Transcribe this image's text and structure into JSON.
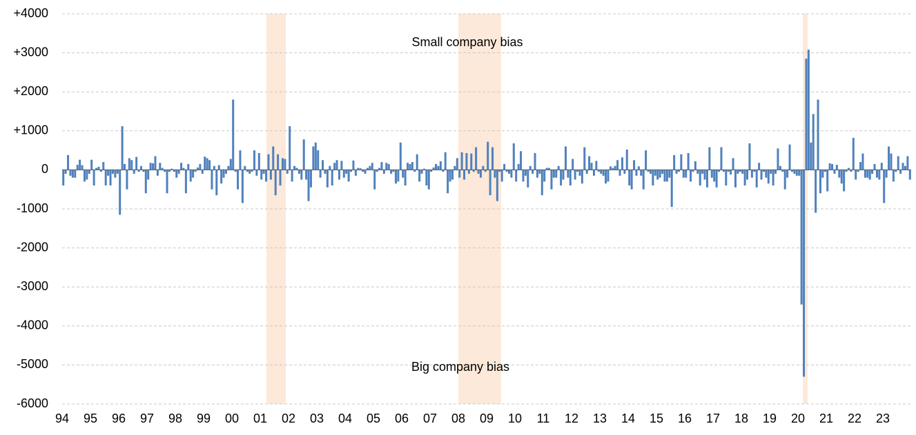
{
  "chart_data": {
    "type": "bar",
    "annotations": [
      "Small company bias",
      "Big company bias"
    ],
    "color": "#4f81bd",
    "grid": true,
    "ylim": [
      -6000,
      4000
    ],
    "yticks": [
      {
        "value": 4000,
        "label": "+4000"
      },
      {
        "value": 3000,
        "label": "+3000"
      },
      {
        "value": 2000,
        "label": "+2000"
      },
      {
        "value": 1000,
        "label": "+1000"
      },
      0,
      -1000,
      -2000,
      -3000,
      -4000,
      -5000,
      -6000
    ],
    "categories": [
      "94",
      null,
      null,
      null,
      null,
      null,
      null,
      null,
      null,
      null,
      null,
      null,
      "95",
      null,
      null,
      null,
      null,
      null,
      null,
      null,
      null,
      null,
      null,
      null,
      "96",
      null,
      null,
      null,
      null,
      null,
      null,
      null,
      null,
      null,
      null,
      null,
      "97",
      null,
      null,
      null,
      null,
      null,
      null,
      null,
      null,
      null,
      null,
      null,
      "98",
      null,
      null,
      null,
      null,
      null,
      null,
      null,
      null,
      null,
      null,
      null,
      "99",
      null,
      null,
      null,
      null,
      null,
      null,
      null,
      null,
      null,
      null,
      null,
      "00",
      null,
      null,
      null,
      null,
      null,
      null,
      null,
      null,
      null,
      null,
      null,
      "01",
      null,
      null,
      null,
      null,
      null,
      null,
      null,
      null,
      null,
      null,
      null,
      "02",
      null,
      null,
      null,
      null,
      null,
      null,
      null,
      null,
      null,
      null,
      null,
      "03",
      null,
      null,
      null,
      null,
      null,
      null,
      null,
      null,
      null,
      null,
      null,
      "04",
      null,
      null,
      null,
      null,
      null,
      null,
      null,
      null,
      null,
      null,
      null,
      "05",
      null,
      null,
      null,
      null,
      null,
      null,
      null,
      null,
      null,
      null,
      null,
      "06",
      null,
      null,
      null,
      null,
      null,
      null,
      null,
      null,
      null,
      null,
      null,
      "07",
      null,
      null,
      null,
      null,
      null,
      null,
      null,
      null,
      null,
      null,
      null,
      "08",
      null,
      null,
      null,
      null,
      null,
      null,
      null,
      null,
      null,
      null,
      null,
      "09",
      null,
      null,
      null,
      null,
      null,
      null,
      null,
      null,
      null,
      null,
      null,
      "10",
      null,
      null,
      null,
      null,
      null,
      null,
      null,
      null,
      null,
      null,
      null,
      "11",
      null,
      null,
      null,
      null,
      null,
      null,
      null,
      null,
      null,
      null,
      null,
      "12",
      null,
      null,
      null,
      null,
      null,
      null,
      null,
      null,
      null,
      null,
      null,
      "13",
      null,
      null,
      null,
      null,
      null,
      null,
      null,
      null,
      null,
      null,
      null,
      "14",
      null,
      null,
      null,
      null,
      null,
      null,
      null,
      null,
      null,
      null,
      null,
      "15",
      null,
      null,
      null,
      null,
      null,
      null,
      null,
      null,
      null,
      null,
      null,
      "16",
      null,
      null,
      null,
      null,
      null,
      null,
      null,
      null,
      null,
      null,
      null,
      "17",
      null,
      null,
      null,
      null,
      null,
      null,
      null,
      null,
      null,
      null,
      null,
      "18",
      null,
      null,
      null,
      null,
      null,
      null,
      null,
      null,
      null,
      null,
      null,
      "19",
      null,
      null,
      null,
      null,
      null,
      null,
      null,
      null,
      null,
      null,
      null,
      "20",
      null,
      null,
      null,
      null,
      null,
      null,
      null,
      null,
      null,
      null,
      null,
      "21",
      null,
      null,
      null,
      null,
      null,
      null,
      null,
      null,
      null,
      null,
      null,
      "22",
      null,
      null,
      null,
      null,
      null,
      null,
      null,
      null,
      null,
      null,
      null,
      "23",
      null,
      null,
      null,
      null,
      null,
      null,
      null,
      null,
      null,
      null,
      null
    ],
    "values": [
      -400,
      -100,
      380,
      -150,
      -200,
      -200,
      130,
      260,
      120,
      -300,
      -250,
      -100,
      260,
      -400,
      50,
      80,
      -50,
      200,
      -400,
      -150,
      -400,
      -100,
      -200,
      -100,
      -1150,
      1120,
      150,
      -500,
      300,
      250,
      -100,
      330,
      -50,
      100,
      -50,
      -600,
      -250,
      180,
      170,
      350,
      -150,
      180,
      50,
      -50,
      -600,
      -50,
      30,
      -50,
      -200,
      -100,
      180,
      50,
      -600,
      150,
      -300,
      -200,
      -50,
      60,
      150,
      -100,
      340,
      300,
      250,
      -500,
      100,
      -650,
      120,
      -350,
      -200,
      -100,
      100,
      280,
      1800,
      -50,
      -500,
      500,
      -850,
      100,
      -50,
      -100,
      -50,
      500,
      -150,
      430,
      -250,
      -100,
      -300,
      400,
      -250,
      600,
      -650,
      400,
      -400,
      300,
      280,
      -100,
      1120,
      -300,
      100,
      50,
      -100,
      -250,
      780,
      -250,
      -800,
      -450,
      600,
      700,
      500,
      -200,
      250,
      -100,
      -450,
      100,
      -400,
      180,
      250,
      -250,
      230,
      -200,
      -100,
      -300,
      -50,
      240,
      -150,
      50,
      40,
      -50,
      -100,
      50,
      100,
      180,
      -500,
      -50,
      50,
      200,
      -100,
      180,
      150,
      -100,
      -50,
      -350,
      -300,
      700,
      -200,
      -400,
      180,
      150,
      200,
      -50,
      400,
      -300,
      -100,
      30,
      -400,
      -500,
      -50,
      60,
      150,
      100,
      220,
      -50,
      450,
      -600,
      -300,
      -250,
      100,
      300,
      -200,
      450,
      -250,
      430,
      -100,
      420,
      -50,
      580,
      -100,
      -200,
      100,
      -50,
      720,
      -650,
      580,
      -200,
      -800,
      -50,
      -300,
      150,
      -50,
      -100,
      -200,
      680,
      -300,
      150,
      480,
      -300,
      -150,
      -450,
      100,
      -100,
      430,
      -200,
      -100,
      -650,
      -300,
      50,
      50,
      -500,
      -200,
      -200,
      100,
      -400,
      -250,
      600,
      -200,
      -400,
      280,
      -250,
      -50,
      -150,
      -350,
      580,
      -100,
      350,
      180,
      -150,
      230,
      -50,
      -100,
      -150,
      -350,
      -300,
      90,
      50,
      100,
      250,
      -150,
      320,
      -100,
      520,
      -400,
      -500,
      250,
      -150,
      90,
      -150,
      -500,
      500,
      -50,
      -100,
      -400,
      -150,
      -250,
      -200,
      -100,
      -300,
      -300,
      -200,
      -950,
      380,
      -100,
      -50,
      400,
      -200,
      -200,
      430,
      -300,
      -50,
      220,
      -100,
      -400,
      -100,
      -250,
      -450,
      580,
      -200,
      -300,
      -450,
      -50,
      580,
      -50,
      -400,
      -50,
      -120,
      300,
      -450,
      -100,
      -50,
      -100,
      -400,
      -250,
      680,
      -200,
      -50,
      -450,
      180,
      -250,
      -50,
      -200,
      -350,
      -100,
      -400,
      -100,
      550,
      100,
      -50,
      -500,
      -200,
      650,
      -50,
      -100,
      -150,
      -150,
      -3450,
      -5300,
      2850,
      3080,
      700,
      1430,
      -1100,
      1800,
      -600,
      -200,
      -50,
      -550,
      170,
      150,
      -100,
      130,
      -200,
      -350,
      -550,
      -50,
      50,
      -50,
      820,
      -250,
      -50,
      200,
      420,
      -200,
      -200,
      -250,
      -100,
      150,
      -200,
      -250,
      180,
      -850,
      -200,
      600,
      420,
      -300,
      -50,
      350,
      -100,
      180,
      100,
      350,
      -250
    ]
  }
}
